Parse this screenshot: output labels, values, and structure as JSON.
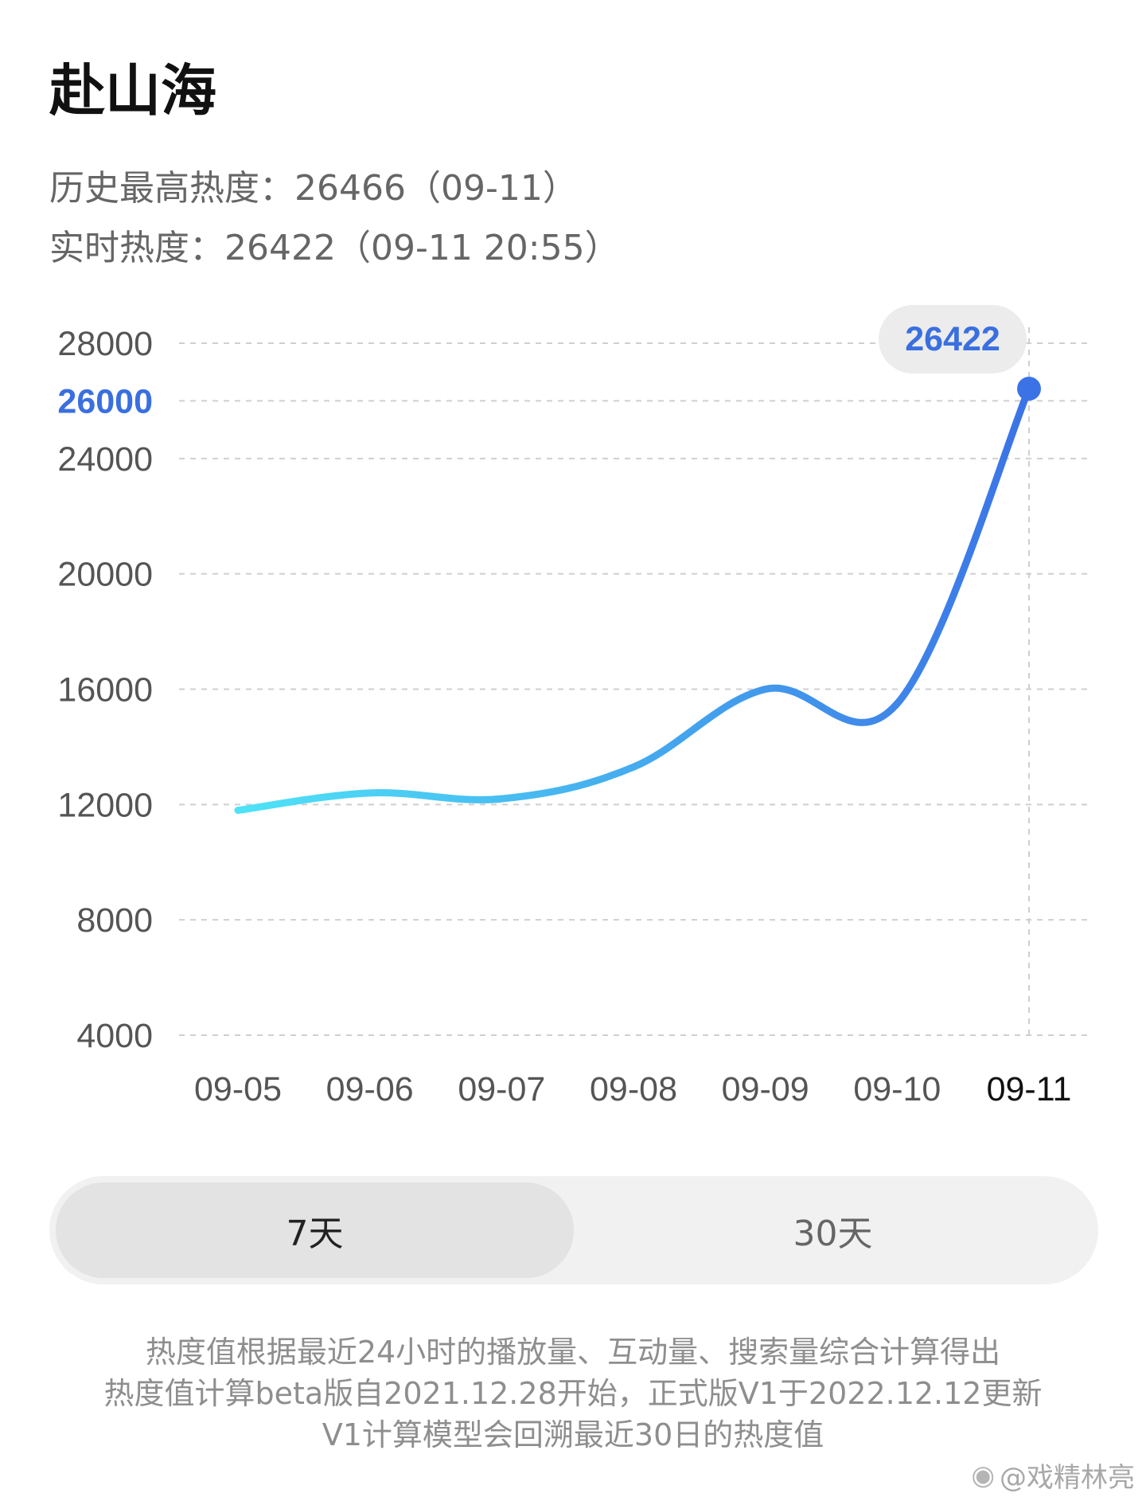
{
  "header": {
    "title": "赴山海",
    "historical_peak": "历史最高热度：26466（09-11）",
    "realtime": "实时热度：26422（09-11 20:55）"
  },
  "chart_data": {
    "type": "line",
    "x": [
      "09-05",
      "09-06",
      "09-07",
      "09-08",
      "09-09",
      "09-10",
      "09-11"
    ],
    "series": [
      {
        "values": [
          11800,
          12400,
          12200,
          13300,
          16000,
          15500,
          26422
        ]
      }
    ],
    "yticks": [
      4000,
      8000,
      12000,
      16000,
      20000,
      24000,
      26000,
      28000
    ],
    "highlighted_ytick": 26000,
    "ylim": [
      4000,
      28000
    ],
    "highlight": {
      "x": "09-11",
      "label": "26422"
    },
    "grid": true,
    "colors": {
      "start": "#4fe3f7",
      "end": "#3b73e6",
      "accent": "#3a6fe0",
      "grid": "#cfcfcf"
    }
  },
  "tabs": [
    {
      "label": "7天",
      "active": true
    },
    {
      "label": "30天",
      "active": false
    }
  ],
  "notes": [
    "热度值根据最近24小时的播放量、互动量、搜索量综合计算得出",
    "热度值计算beta版自2021.12.28开始，正式版V1于2022.12.12更新",
    "V1计算模型会回溯最近30日的热度值"
  ],
  "watermark": {
    "icon": "weibo-icon",
    "text": "@戏精林亮"
  }
}
